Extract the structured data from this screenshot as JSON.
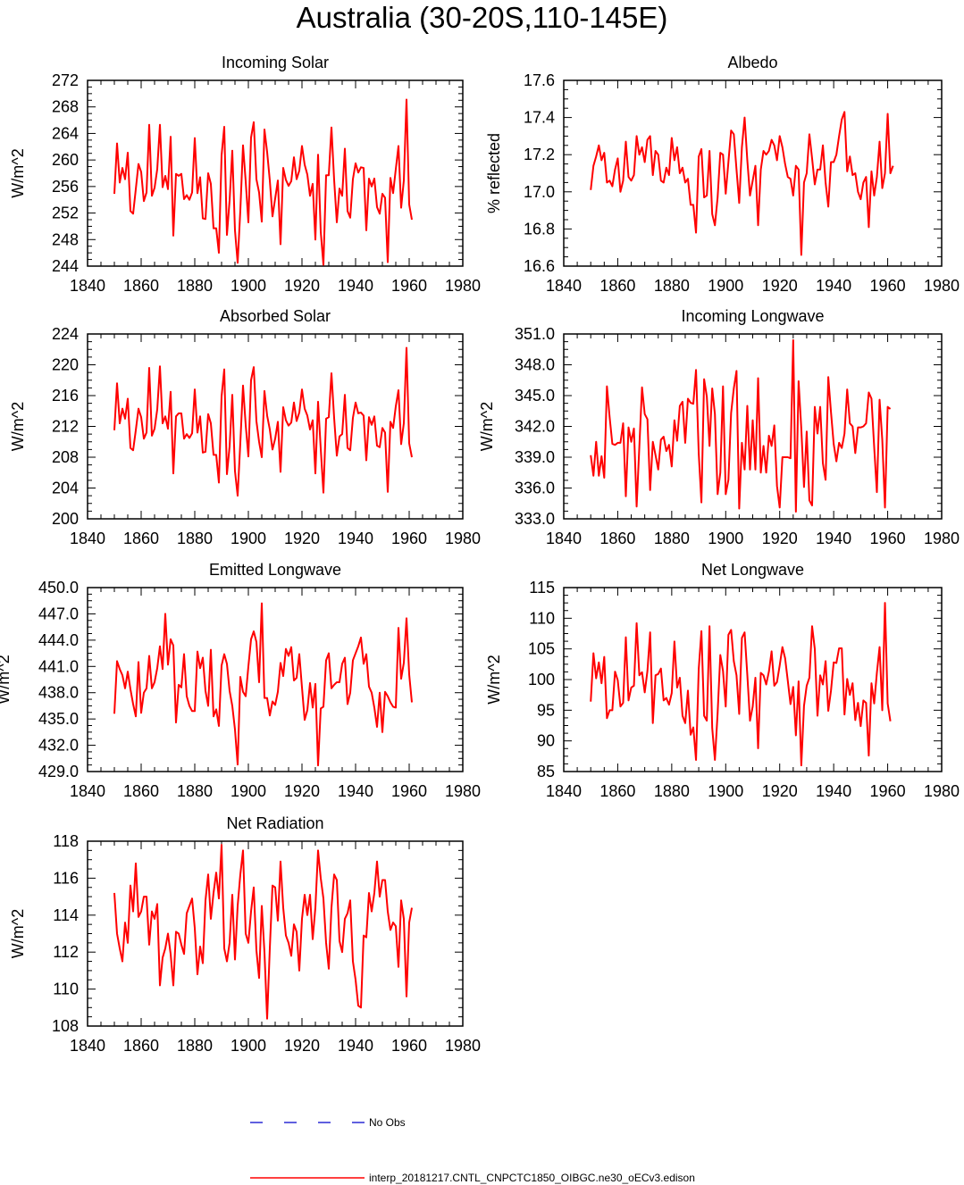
{
  "title": "Australia (30-20S,110-145E)",
  "colors": {
    "model": "#ff0000",
    "obs": "#0000cc",
    "axis": "#000000"
  },
  "legend": {
    "obs_label": "No Obs",
    "model_label": "interp_20181217.CNTL_CNPCTC1850_OIBGC.ne30_oECv3.edison"
  },
  "chart_data": [
    {
      "type": "line",
      "title": "Incoming Solar",
      "xlabel": "",
      "ylabel": "W/m^2",
      "xlim": [
        1840,
        1980
      ],
      "ylim": [
        244,
        272
      ],
      "xticks": [
        1840,
        1860,
        1880,
        1900,
        1920,
        1940,
        1960,
        1980
      ],
      "yticks": [
        "244",
        "248",
        "252",
        "256",
        "260",
        "264",
        "268",
        "272"
      ],
      "x_start": 1850,
      "series": [
        {
          "values": [
            254.9,
            262.5,
            256.6,
            258.8,
            257.1,
            261.1,
            252.3,
            251.9,
            255.6,
            259.4,
            258.2,
            253.8,
            255.1,
            265.3,
            254.6,
            255.8,
            258.6,
            265.3,
            255.9,
            257.6,
            255.6,
            263.5,
            248.6,
            257.9,
            257.6,
            257.9,
            254.1,
            254.7,
            254.0,
            255.1,
            263.3,
            255.0,
            257.4,
            251.2,
            251.1,
            258.0,
            256.4,
            249.7,
            249.7,
            246.0,
            260.7,
            265.0,
            248.7,
            253.9,
            261.4,
            249.4,
            244.5,
            252.4,
            262.2,
            256.8,
            250.6,
            263.4,
            265.7,
            257.1,
            255.1,
            250.7,
            264.6,
            261.2,
            256.9,
            251.5,
            254.2,
            256.9,
            247.3,
            258.8,
            257.0,
            256.1,
            256.8,
            260.4,
            257.1,
            258.4,
            262.1,
            259.3,
            257.8,
            254.6,
            256.4,
            248.0,
            260.8,
            249.2,
            244.2,
            257.7,
            257.7,
            264.9,
            257.0,
            250.6,
            255.7,
            254.6,
            261.7,
            252.3,
            251.3,
            257.1,
            259.5,
            258.1,
            258.9,
            258.8,
            249.4,
            257.2,
            256.0,
            257.2,
            252.9,
            251.9,
            254.9,
            254.3,
            244.6,
            257.3,
            255.0,
            258.6,
            262.1,
            252.8,
            256.9,
            269.1,
            253.3,
            251.0
          ]
        }
      ]
    },
    {
      "type": "line",
      "title": "Albedo",
      "xlabel": "",
      "ylabel": "% reflected",
      "xlim": [
        1840,
        1980
      ],
      "ylim": [
        16.6,
        17.6
      ],
      "xticks": [
        1840,
        1860,
        1880,
        1900,
        1920,
        1940,
        1960,
        1980
      ],
      "yticks": [
        "16.6",
        "16.8",
        "17.0",
        "17.2",
        "17.4",
        "17.6"
      ],
      "x_start": 1850,
      "series": [
        {
          "values": [
            17.01,
            17.14,
            17.19,
            17.25,
            17.17,
            17.21,
            17.05,
            17.06,
            17.03,
            17.12,
            17.18,
            17.0,
            17.06,
            17.27,
            17.08,
            17.06,
            17.09,
            17.3,
            17.2,
            17.24,
            17.16,
            17.28,
            17.3,
            17.09,
            17.22,
            17.2,
            17.06,
            17.05,
            17.13,
            17.09,
            17.29,
            17.17,
            17.24,
            17.1,
            17.13,
            17.05,
            17.07,
            16.93,
            16.93,
            16.78,
            17.19,
            17.23,
            16.97,
            16.98,
            17.22,
            16.88,
            16.82,
            16.97,
            17.21,
            17.2,
            16.99,
            17.16,
            17.33,
            17.31,
            17.12,
            16.94,
            17.24,
            17.4,
            17.17,
            16.98,
            17.06,
            17.14,
            16.82,
            17.12,
            17.22,
            17.2,
            17.22,
            17.28,
            17.25,
            17.17,
            17.3,
            17.24,
            17.15,
            17.08,
            17.07,
            16.98,
            17.14,
            17.12,
            16.66,
            17.05,
            17.1,
            17.31,
            17.18,
            17.04,
            17.12,
            17.12,
            17.25,
            17.05,
            16.92,
            17.16,
            17.16,
            17.2,
            17.3,
            17.39,
            17.43,
            17.11,
            17.19,
            17.09,
            17.1,
            17.0,
            16.96,
            17.05,
            17.08,
            16.81,
            17.11,
            16.98,
            17.08,
            17.27,
            17.02,
            17.1,
            17.42,
            17.1,
            17.14
          ]
        }
      ]
    },
    {
      "type": "line",
      "title": "Absorbed Solar",
      "xlabel": "",
      "ylabel": "W/m^2",
      "xlim": [
        1840,
        1980
      ],
      "ylim": [
        200,
        224
      ],
      "xticks": [
        1840,
        1860,
        1880,
        1900,
        1920,
        1940,
        1960,
        1980
      ],
      "yticks": [
        "200",
        "204",
        "208",
        "212",
        "216",
        "220",
        "224"
      ],
      "x_start": 1850,
      "series": [
        {
          "values": [
            211.5,
            217.6,
            212.4,
            214.3,
            213.0,
            215.6,
            209.2,
            208.9,
            211.5,
            214.3,
            213.2,
            210.4,
            211.2,
            219.6,
            210.8,
            211.7,
            214.2,
            219.8,
            212.4,
            213.3,
            211.7,
            216.5,
            205.9,
            213.3,
            213.7,
            213.7,
            210.4,
            211.0,
            210.5,
            211.1,
            216.8,
            211.2,
            213.3,
            208.6,
            208.7,
            213.6,
            212.4,
            208.3,
            208.3,
            204.7,
            215.9,
            219.4,
            205.8,
            209.4,
            216.1,
            206.2,
            203.0,
            209.9,
            217.3,
            212.2,
            208.1,
            218.0,
            219.7,
            212.7,
            210.0,
            208.0,
            216.6,
            213.4,
            211.6,
            209.0,
            210.4,
            212.6,
            206.1,
            214.5,
            212.8,
            212.1,
            212.5,
            215.1,
            212.7,
            213.8,
            216.8,
            214.3,
            213.4,
            211.6,
            212.8,
            205.9,
            215.2,
            209.1,
            203.4,
            213.0,
            213.2,
            218.9,
            213.1,
            208.2,
            210.7,
            211.0,
            216.1,
            209.2,
            208.9,
            213.1,
            215.1,
            213.7,
            213.8,
            213.4,
            207.6,
            213.2,
            212.2,
            213.3,
            209.5,
            209.3,
            211.8,
            211.2,
            203.5,
            212.6,
            211.8,
            214.6,
            216.7,
            209.7,
            212.4,
            222.2,
            209.8,
            208.0
          ]
        }
      ]
    },
    {
      "type": "line",
      "title": "Incoming Longwave",
      "xlabel": "",
      "ylabel": "W/m^2",
      "xlim": [
        1840,
        1980
      ],
      "ylim": [
        333.0,
        351.0
      ],
      "xticks": [
        1840,
        1860,
        1880,
        1900,
        1920,
        1940,
        1960,
        1980
      ],
      "yticks": [
        "333.0",
        "336.0",
        "339.0",
        "342.0",
        "345.0",
        "348.0",
        "351.0"
      ],
      "x_start": 1850,
      "series": [
        {
          "values": [
            339.2,
            337.2,
            340.5,
            337.2,
            339.1,
            337.0,
            345.9,
            342.9,
            340.3,
            340.2,
            340.4,
            340.4,
            342.3,
            335.2,
            341.9,
            340.5,
            341.8,
            334.2,
            340.0,
            345.8,
            343.2,
            342.7,
            335.8,
            340.5,
            339.2,
            337.8,
            340.7,
            341.0,
            339.6,
            340.2,
            338.1,
            342.6,
            340.6,
            344.0,
            344.4,
            340.4,
            344.7,
            344.3,
            344.2,
            347.5,
            339.4,
            334.6,
            346.6,
            344.9,
            340.1,
            345.7,
            343.2,
            335.4,
            337.5,
            345.9,
            335.4,
            336.8,
            343.3,
            345.7,
            347.4,
            334.0,
            340.4,
            337.8,
            344.0,
            337.8,
            342.6,
            337.8,
            346.7,
            337.5,
            340.1,
            337.5,
            341.1,
            340.1,
            342.1,
            336.2,
            334.1,
            339.0,
            339.0,
            339.0,
            338.9,
            350.4,
            333.7,
            346.4,
            341.8,
            336.1,
            341.5,
            334.8,
            334.3,
            343.9,
            341.3,
            343.9,
            338.4,
            336.8,
            346.8,
            343.4,
            340.3,
            338.6,
            340.4,
            339.9,
            341.3,
            345.6,
            342.3,
            342.0,
            339.4,
            341.9,
            341.9,
            342.0,
            342.3,
            345.3,
            344.7,
            340.0,
            335.6,
            344.6,
            340.7,
            334.1,
            343.9,
            343.7
          ]
        }
      ]
    },
    {
      "type": "line",
      "title": "Emitted Longwave",
      "xlabel": "",
      "ylabel": "W/m^2",
      "xlim": [
        1840,
        1980
      ],
      "ylim": [
        429.0,
        450.0
      ],
      "xticks": [
        1840,
        1860,
        1880,
        1900,
        1920,
        1940,
        1960,
        1980
      ],
      "yticks": [
        "429.0",
        "432.0",
        "435.0",
        "438.0",
        "441.0",
        "444.0",
        "447.0",
        "450.0"
      ],
      "x_start": 1850,
      "series": [
        {
          "values": [
            435.6,
            441.6,
            440.7,
            440.0,
            438.5,
            440.4,
            438.4,
            436.7,
            435.3,
            441.5,
            435.7,
            438.0,
            438.5,
            442.2,
            438.5,
            439.2,
            440.8,
            443.3,
            440.7,
            447.0,
            441.2,
            444.1,
            443.4,
            434.6,
            438.9,
            438.6,
            442.4,
            437.6,
            436.5,
            435.9,
            435.9,
            442.7,
            440.8,
            442.0,
            438.2,
            436.5,
            442.9,
            435.3,
            436.1,
            434.2,
            441.1,
            442.4,
            441.3,
            438.2,
            436.5,
            433.8,
            429.8,
            439.8,
            438.1,
            437.6,
            441.0,
            444.1,
            445.0,
            443.8,
            439.2,
            448.2,
            437.4,
            437.4,
            435.4,
            437.0,
            436.6,
            438.1,
            441.4,
            439.9,
            443.0,
            442.2,
            443.2,
            439.4,
            439.7,
            442.4,
            438.6,
            434.9,
            436.0,
            439.1,
            436.3,
            439.0,
            429.7,
            436.2,
            436.4,
            441.7,
            442.5,
            438.5,
            438.9,
            439.2,
            439.2,
            441.3,
            442.0,
            436.7,
            438.0,
            441.7,
            442.5,
            443.3,
            444.3,
            441.3,
            442.4,
            438.7,
            438.0,
            436.3,
            434.1,
            438.0,
            433.5,
            438.1,
            437.6,
            436.9,
            436.4,
            436.3,
            445.4,
            439.6,
            441.4,
            446.5,
            440.1,
            436.9
          ]
        }
      ]
    },
    {
      "type": "line",
      "title": "Net Longwave",
      "xlabel": "",
      "ylabel": "W/m^2",
      "xlim": [
        1840,
        1980
      ],
      "ylim": [
        85,
        115
      ],
      "xticks": [
        1840,
        1860,
        1880,
        1900,
        1920,
        1940,
        1960,
        1980
      ],
      "yticks": [
        "85",
        "90",
        "95",
        "100",
        "105",
        "110",
        "115"
      ],
      "x_start": 1850,
      "series": [
        {
          "values": [
            96.4,
            104.3,
            100.2,
            102.8,
            99.4,
            103.7,
            93.7,
            95.0,
            95.0,
            101.3,
            99.9,
            95.6,
            96.2,
            106.9,
            96.6,
            98.7,
            99.0,
            109.2,
            100.7,
            101.2,
            97.9,
            101.4,
            107.7,
            92.9,
            100.7,
            100.9,
            101.8,
            96.6,
            97.0,
            95.9,
            97.8,
            106.2,
            98.7,
            100.3,
            94.1,
            92.9,
            98.2,
            91.0,
            92.2,
            86.9,
            101.7,
            107.9,
            94.1,
            93.3,
            108.7,
            92.1,
            86.9,
            94.5,
            104.0,
            101.4,
            95.6,
            107.3,
            108.1,
            103.0,
            100.7,
            94.4,
            106.8,
            107.7,
            100.8,
            93.3,
            95.6,
            100.3,
            88.8,
            101.1,
            100.7,
            99.2,
            101.3,
            104.6,
            99.0,
            99.6,
            102.3,
            105.3,
            103.5,
            99.8,
            96.0,
            98.8,
            90.9,
            99.7,
            86.0,
            95.7,
            99.0,
            100.3,
            108.7,
            105.0,
            94.1,
            100.7,
            99.2,
            103.0,
            94.9,
            98.2,
            102.8,
            102.7,
            105.1,
            105.1,
            94.3,
            100.1,
            97.5,
            99.4,
            93.4,
            96.2,
            92.4,
            96.6,
            96.2,
            87.6,
            99.4,
            96.1,
            101.1,
            105.3,
            95.0,
            112.5,
            96.1,
            93.2
          ]
        }
      ]
    },
    {
      "type": "line",
      "title": "Net Radiation",
      "xlabel": "",
      "ylabel": "W/m^2",
      "xlim": [
        1840,
        1980
      ],
      "ylim": [
        108,
        118
      ],
      "xticks": [
        1840,
        1860,
        1880,
        1900,
        1920,
        1940,
        1960,
        1980
      ],
      "yticks": [
        "108",
        "110",
        "112",
        "114",
        "116",
        "118"
      ],
      "x_start": 1850,
      "series": [
        {
          "values": [
            115.2,
            113.0,
            112.2,
            111.5,
            113.6,
            112.5,
            115.6,
            114.2,
            116.8,
            113.9,
            114.2,
            115.0,
            115.0,
            112.4,
            114.2,
            113.8,
            114.6,
            110.2,
            111.7,
            112.2,
            113.0,
            111.9,
            110.2,
            113.1,
            113.0,
            112.4,
            111.9,
            114.1,
            114.5,
            114.9,
            113.3,
            110.8,
            112.3,
            111.4,
            114.8,
            116.2,
            113.8,
            115.2,
            116.3,
            114.9,
            117.8,
            112.2,
            111.5,
            112.5,
            115.1,
            111.6,
            114.5,
            116.2,
            117.5,
            113.0,
            112.5,
            114.2,
            115.5,
            112.1,
            110.6,
            114.5,
            112.0,
            108.4,
            112.2,
            115.6,
            115.5,
            113.7,
            116.9,
            114.4,
            112.9,
            112.5,
            111.8,
            113.5,
            113.1,
            111.0,
            113.8,
            115.1,
            114.0,
            115.1,
            112.7,
            114.4,
            117.5,
            116.0,
            114.9,
            112.5,
            111.1,
            114.4,
            116.2,
            115.9,
            112.6,
            112.0,
            113.8,
            114.1,
            114.8,
            111.5,
            110.5,
            109.1,
            109.0,
            112.9,
            112.8,
            115.2,
            114.2,
            115.2,
            116.9,
            115.0,
            115.9,
            115.9,
            114.2,
            113.2,
            113.6,
            113.4,
            111.2,
            114.8,
            113.8,
            109.6,
            113.6,
            114.4
          ]
        }
      ]
    }
  ]
}
